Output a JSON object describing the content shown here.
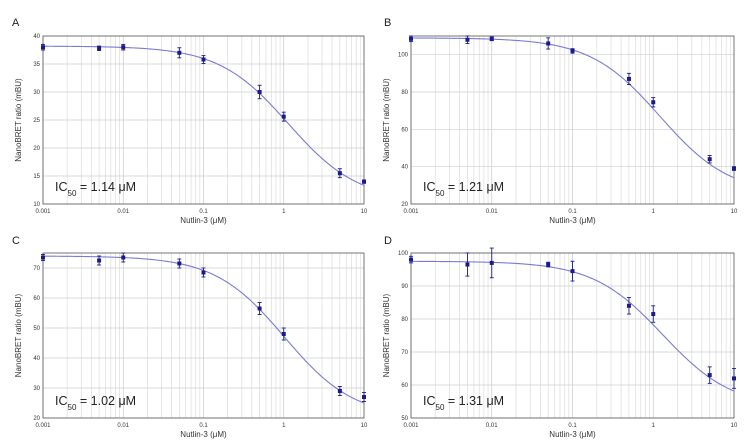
{
  "chart_data": [
    {
      "type": "scatter",
      "panel_label": "A",
      "xlabel": "Nutlin-3 (μM)",
      "ylabel": "NanoBRET ratio (mBU)",
      "xscale": "log",
      "xlim": [
        0.001,
        10
      ],
      "ylim": [
        10,
        40
      ],
      "x_ticks": [
        "0.001",
        "0.01",
        "0.1",
        "1",
        "10"
      ],
      "y_ticks": [
        "10",
        "15",
        "20",
        "25",
        "30",
        "35",
        "40"
      ],
      "ic50_label": "IC",
      "ic50_sub": "50",
      "ic50_value": " = 1.14 μM",
      "points": [
        {
          "x": 0.001,
          "y": 38.0,
          "err": 0.5
        },
        {
          "x": 0.005,
          "y": 37.8,
          "err": 0.4
        },
        {
          "x": 0.01,
          "y": 38.0,
          "err": 0.5
        },
        {
          "x": 0.05,
          "y": 37.0,
          "err": 0.9
        },
        {
          "x": 0.1,
          "y": 35.8,
          "err": 0.7
        },
        {
          "x": 0.5,
          "y": 30.0,
          "err": 1.2
        },
        {
          "x": 1,
          "y": 25.6,
          "err": 0.8
        },
        {
          "x": 5,
          "y": 15.5,
          "err": 0.8
        },
        {
          "x": 10,
          "y": 14.0,
          "err": 0.3
        }
      ],
      "fit": {
        "top": 38.2,
        "bottom": 10.5,
        "ic50": 1.14,
        "hill": 1.0
      },
      "grid": true
    },
    {
      "type": "scatter",
      "panel_label": "B",
      "xlabel": "Nutlin-3 (μM)",
      "ylabel": "NanoBRET ratio (mBU)",
      "xscale": "log",
      "xlim": [
        0.001,
        10
      ],
      "ylim": [
        20,
        110
      ],
      "x_ticks": [
        "0.001",
        "0.01",
        "0.1",
        "1",
        "10"
      ],
      "y_ticks": [
        "20",
        "40",
        "60",
        "80",
        "100"
      ],
      "ic50_label": "IC",
      "ic50_sub": "50",
      "ic50_value": " = 1.21 μM",
      "points": [
        {
          "x": 0.001,
          "y": 108.5,
          "err": 1.5
        },
        {
          "x": 0.005,
          "y": 108.0,
          "err": 2.0
        },
        {
          "x": 0.01,
          "y": 108.5,
          "err": 1.0
        },
        {
          "x": 0.05,
          "y": 106.0,
          "err": 3.0
        },
        {
          "x": 0.1,
          "y": 102.0,
          "err": 1.2
        },
        {
          "x": 0.5,
          "y": 87.0,
          "err": 3.0
        },
        {
          "x": 1,
          "y": 74.5,
          "err": 2.5
        },
        {
          "x": 5,
          "y": 44.0,
          "err": 2.0
        },
        {
          "x": 10,
          "y": 39.0,
          "err": 1.0
        }
      ],
      "fit": {
        "top": 109.0,
        "bottom": 25.0,
        "ic50": 1.21,
        "hill": 1.0
      },
      "grid": true
    },
    {
      "type": "scatter",
      "panel_label": "C",
      "xlabel": "Nutlin-3 (μM)",
      "ylabel": "NanoBRET ratio (mBU)",
      "xscale": "log",
      "xlim": [
        0.001,
        10
      ],
      "ylim": [
        20,
        75
      ],
      "x_ticks": [
        "0.001",
        "0.01",
        "0.1",
        "1",
        "10"
      ],
      "y_ticks": [
        "20",
        "30",
        "40",
        "50",
        "60",
        "70"
      ],
      "ic50_label": "IC",
      "ic50_sub": "50",
      "ic50_value": " = 1.02 μM",
      "points": [
        {
          "x": 0.001,
          "y": 73.5,
          "err": 1.0
        },
        {
          "x": 0.005,
          "y": 72.5,
          "err": 1.5
        },
        {
          "x": 0.01,
          "y": 73.5,
          "err": 1.5
        },
        {
          "x": 0.05,
          "y": 71.5,
          "err": 1.5
        },
        {
          "x": 0.1,
          "y": 68.5,
          "err": 1.5
        },
        {
          "x": 0.5,
          "y": 56.5,
          "err": 2.0
        },
        {
          "x": 1,
          "y": 48.0,
          "err": 2.0
        },
        {
          "x": 5,
          "y": 29.0,
          "err": 1.5
        },
        {
          "x": 10,
          "y": 27.0,
          "err": 1.5
        }
      ],
      "fit": {
        "top": 74.0,
        "bottom": 20.0,
        "ic50": 1.02,
        "hill": 1.0
      },
      "grid": true
    },
    {
      "type": "scatter",
      "panel_label": "D",
      "xlabel": "Nutlin-3 (μM)",
      "ylabel": "NanoBRET ratio (mBU)",
      "xscale": "log",
      "xlim": [
        0.001,
        10
      ],
      "ylim": [
        50,
        100
      ],
      "x_ticks": [
        "0.001",
        "0.01",
        "0.1",
        "1",
        "10"
      ],
      "y_ticks": [
        "50",
        "60",
        "70",
        "80",
        "90",
        "100"
      ],
      "ic50_label": "IC",
      "ic50_sub": "50",
      "ic50_value": " = 1.31 μM",
      "points": [
        {
          "x": 0.001,
          "y": 98.0,
          "err": 1.0
        },
        {
          "x": 0.005,
          "y": 96.5,
          "err": 3.5
        },
        {
          "x": 0.01,
          "y": 97.0,
          "err": 4.5
        },
        {
          "x": 0.05,
          "y": 96.5,
          "err": 0.7
        },
        {
          "x": 0.1,
          "y": 94.5,
          "err": 3.0
        },
        {
          "x": 0.5,
          "y": 84.0,
          "err": 2.5
        },
        {
          "x": 1,
          "y": 81.5,
          "err": 2.5
        },
        {
          "x": 5,
          "y": 63.0,
          "err": 2.5
        },
        {
          "x": 10,
          "y": 62.0,
          "err": 3.0
        }
      ],
      "fit": {
        "top": 97.5,
        "bottom": 53.0,
        "ic50": 1.31,
        "hill": 1.0
      },
      "grid": true
    }
  ],
  "colors": {
    "marker": "#1a1a8c",
    "fit_line": "#7a7ad6",
    "grid": "#dcdcdc",
    "axis_text": "#333333",
    "frame": "#555555"
  }
}
